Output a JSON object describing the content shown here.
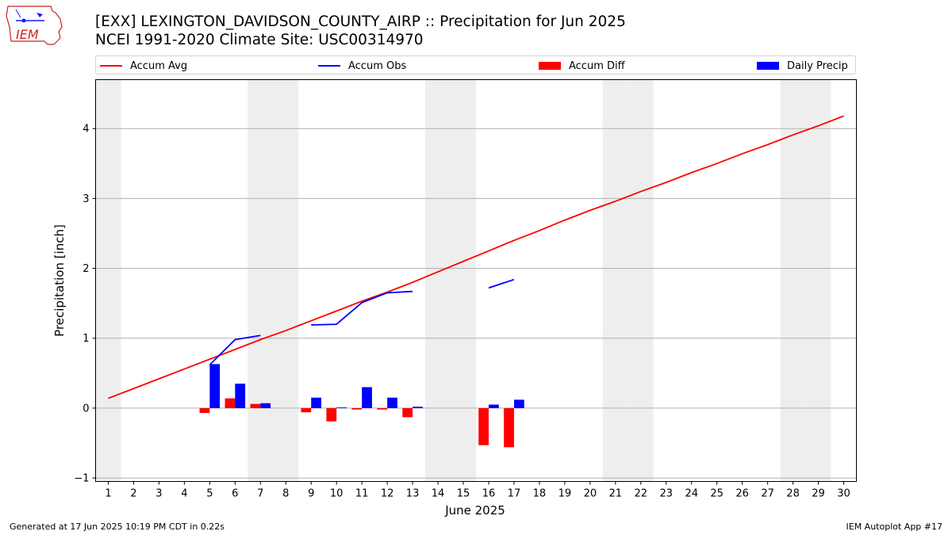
{
  "header": {
    "title_line1": "[EXX] LEXINGTON_DAVIDSON_COUNTY_AIRP :: Precipitation for Jun 2025",
    "title_line2": "NCEI 1991-2020 Climate Site: USC00314970",
    "logo_text": "IEM"
  },
  "legend": {
    "accum_avg": "Accum Avg",
    "accum_obs": "Accum Obs",
    "accum_diff": "Accum Diff",
    "daily_precip": "Daily Precip"
  },
  "footer": {
    "generated": "Generated at 17 Jun 2025 10:19 PM CDT in 0.22s",
    "app": "IEM Autoplot App #17"
  },
  "colors": {
    "avg": "#ff0000",
    "obs": "#0000ff",
    "diff": "#ff0000",
    "daily": "#0000ff",
    "weekend": "#eeeeee",
    "grid": "#b0b0b0"
  },
  "chart_data": {
    "type": "bar",
    "xlabel": "June 2025",
    "ylabel": "Precipitation [inch]",
    "xlim": [
      0.5,
      30.5
    ],
    "ylim": [
      -1.05,
      4.7
    ],
    "yticks": [
      -1,
      0,
      1,
      2,
      3,
      4
    ],
    "days": [
      1,
      2,
      3,
      4,
      5,
      6,
      7,
      8,
      9,
      10,
      11,
      12,
      13,
      14,
      15,
      16,
      17,
      18,
      19,
      20,
      21,
      22,
      23,
      24,
      25,
      26,
      27,
      28,
      29,
      30
    ],
    "weekend_days": [
      1,
      7,
      8,
      14,
      15,
      21,
      22,
      28,
      29
    ],
    "grid": "y",
    "accum_avg": {
      "x": [
        1,
        2,
        3,
        4,
        5,
        6,
        7,
        8,
        9,
        10,
        11,
        12,
        13,
        14,
        15,
        16,
        17,
        18,
        19,
        20,
        21,
        22,
        23,
        24,
        25,
        26,
        27,
        28,
        29,
        30
      ],
      "y": [
        0.14,
        0.28,
        0.42,
        0.56,
        0.7,
        0.84,
        0.98,
        1.11,
        1.25,
        1.39,
        1.53,
        1.66,
        1.8,
        1.95,
        2.1,
        2.25,
        2.4,
        2.54,
        2.69,
        2.83,
        2.96,
        3.1,
        3.23,
        3.37,
        3.5,
        3.64,
        3.77,
        3.91,
        4.04,
        4.18
      ]
    },
    "accum_obs": [
      {
        "x": [
          5,
          6,
          7
        ],
        "y": [
          0.62,
          0.98,
          1.04
        ]
      },
      {
        "x": [
          9,
          10,
          11,
          12,
          13
        ],
        "y": [
          1.19,
          1.2,
          1.51,
          1.65,
          1.67
        ]
      },
      {
        "x": [
          16,
          17
        ],
        "y": [
          1.72,
          1.84
        ]
      }
    ],
    "accum_diff": {
      "x": [
        5,
        6,
        7,
        9,
        10,
        11,
        12,
        13,
        16,
        17
      ],
      "values": [
        -0.07,
        0.14,
        0.06,
        -0.06,
        -0.19,
        -0.02,
        -0.02,
        -0.13,
        -0.53,
        -0.56
      ]
    },
    "daily_precip": {
      "x": [
        5,
        6,
        7,
        9,
        10,
        11,
        12,
        13,
        16,
        17
      ],
      "values": [
        0.63,
        0.35,
        0.07,
        0.15,
        0.01,
        0.3,
        0.15,
        0.02,
        0.05,
        0.12
      ]
    }
  }
}
